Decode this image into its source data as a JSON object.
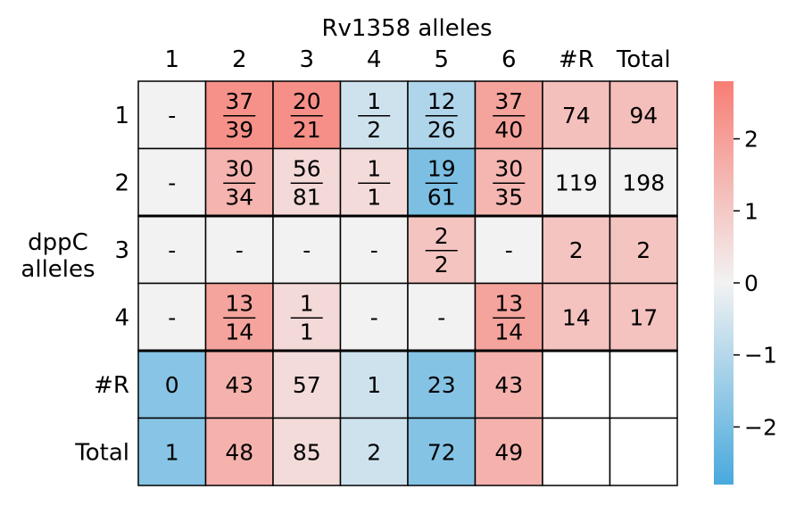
{
  "chart_data": {
    "type": "heatmap",
    "title": "Rv1358 alleles",
    "xlabel": "",
    "ylabel": "dppC alleles",
    "columns": [
      "1",
      "2",
      "3",
      "4",
      "5",
      "6",
      "#R",
      "Total"
    ],
    "rows": [
      "1",
      "2",
      "3",
      "4",
      "#R",
      "Total"
    ],
    "cells": [
      [
        {
          "text": "-",
          "v": 0
        },
        {
          "num": "37",
          "den": "39",
          "v": 2.35
        },
        {
          "num": "20",
          "den": "21",
          "v": 2.4
        },
        {
          "num": "1",
          "den": "2",
          "v": -0.6
        },
        {
          "num": "12",
          "den": "26",
          "v": -1.1
        },
        {
          "num": "37",
          "den": "40",
          "v": 1.9
        },
        {
          "text": "74",
          "v": 1.2
        },
        {
          "text": "94",
          "v": 1.25
        }
      ],
      [
        {
          "text": "-",
          "v": 0
        },
        {
          "num": "30",
          "den": "34",
          "v": 1.5
        },
        {
          "num": "56",
          "den": "81",
          "v": 0.6
        },
        {
          "num": "1",
          "den": "1",
          "v": 0.55
        },
        {
          "num": "19",
          "den": "61",
          "v": -1.95
        },
        {
          "num": "30",
          "den": "35",
          "v": 1.45
        },
        {
          "text": "119",
          "v": 0
        },
        {
          "text": "198",
          "v": 0
        }
      ],
      [
        {
          "text": "-",
          "v": 0
        },
        {
          "text": "-",
          "v": 0
        },
        {
          "text": "-",
          "v": 0
        },
        {
          "text": "-",
          "v": 0
        },
        {
          "num": "2",
          "den": "2",
          "v": 1.1
        },
        {
          "text": "-",
          "v": 0
        },
        {
          "text": "2",
          "v": 1.1
        },
        {
          "text": "2",
          "v": 1.1
        }
      ],
      [
        {
          "text": "-",
          "v": 0
        },
        {
          "num": "13",
          "den": "14",
          "v": 1.9
        },
        {
          "num": "1",
          "den": "1",
          "v": 0.6
        },
        {
          "text": "-",
          "v": 0
        },
        {
          "text": "-",
          "v": 0
        },
        {
          "num": "13",
          "den": "14",
          "v": 1.9
        },
        {
          "text": "14",
          "v": 1.15
        },
        {
          "text": "17",
          "v": 1.15
        }
      ],
      [
        {
          "text": "0",
          "v": -1.75
        },
        {
          "text": "43",
          "v": 1.55
        },
        {
          "text": "57",
          "v": 0.55
        },
        {
          "text": "1",
          "v": -0.6
        },
        {
          "text": "23",
          "v": -1.8
        },
        {
          "text": "43",
          "v": 1.55
        },
        {
          "text": "",
          "v": null
        },
        {
          "text": "",
          "v": null
        }
      ],
      [
        {
          "text": "1",
          "v": -1.75
        },
        {
          "text": "48",
          "v": 1.55
        },
        {
          "text": "85",
          "v": 0.55
        },
        {
          "text": "2",
          "v": -0.6
        },
        {
          "text": "72",
          "v": -1.8
        },
        {
          "text": "49",
          "v": 1.55
        },
        {
          "text": "",
          "v": null
        },
        {
          "text": "",
          "v": null
        }
      ]
    ],
    "colorbar": {
      "vmin": -2.8,
      "vmax": 2.8,
      "ticks": [
        "2",
        "1",
        "0",
        "−1",
        "−2"
      ],
      "tick_values": [
        2,
        1,
        0,
        -1,
        -2
      ],
      "colors": {
        "low": "#48a9dd",
        "mid": "#f2f2f2",
        "high": "#f77e75"
      }
    },
    "grid": true,
    "legend": "right"
  }
}
